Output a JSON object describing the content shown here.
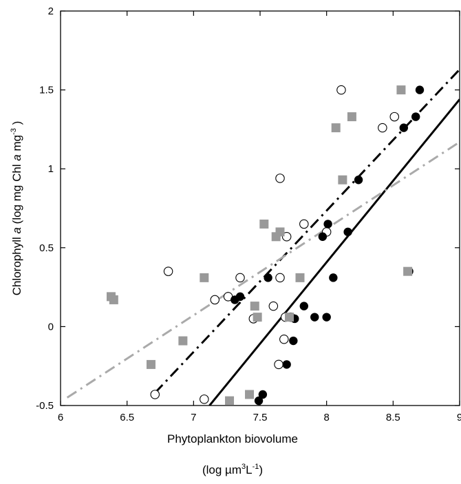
{
  "chart_data": {
    "type": "scatter",
    "xlabel_line1": "Phytoplankton biovolume",
    "xlabel_line2_parts": [
      "(log µm",
      "3",
      "L",
      "-1",
      ")"
    ],
    "ylabel_parts": [
      "Chlorophyll ",
      "a",
      "  (log mg Chl ",
      "a",
      " mg",
      "-3",
      " )"
    ],
    "xlim": [
      6,
      9
    ],
    "ylim": [
      -0.5,
      2
    ],
    "xticks": [
      6,
      6.5,
      7,
      7.5,
      8,
      8.5,
      9
    ],
    "xtick_labels": [
      "6",
      "6.5",
      "7",
      "7.5",
      "8",
      "8.5",
      "9"
    ],
    "yticks": [
      -0.5,
      0,
      0.5,
      1,
      1.5,
      2
    ],
    "ytick_labels": [
      "-0.5",
      "0",
      "0.5",
      "1",
      "1.5",
      "2"
    ],
    "series": [
      {
        "marker": "open-circle",
        "color": "#000000",
        "points": [
          [
            6.71,
            -0.43
          ],
          [
            6.81,
            0.35
          ],
          [
            7.08,
            -0.46
          ],
          [
            7.16,
            0.17
          ],
          [
            7.26,
            0.19
          ],
          [
            7.35,
            0.31
          ],
          [
            7.45,
            0.05
          ],
          [
            7.6,
            0.13
          ],
          [
            7.64,
            -0.24
          ],
          [
            7.65,
            0.31
          ],
          [
            7.65,
            0.94
          ],
          [
            7.68,
            -0.08
          ],
          [
            7.69,
            0.06
          ],
          [
            7.7,
            0.57
          ],
          [
            7.73,
            0.06
          ],
          [
            7.83,
            0.65
          ],
          [
            8.0,
            0.6
          ],
          [
            8.11,
            1.5
          ],
          [
            8.42,
            1.26
          ],
          [
            8.51,
            1.33
          ]
        ]
      },
      {
        "marker": "filled-circle",
        "color": "#000000",
        "points": [
          [
            7.31,
            0.17
          ],
          [
            7.35,
            0.19
          ],
          [
            7.49,
            -0.47
          ],
          [
            7.52,
            -0.43
          ],
          [
            7.56,
            0.31
          ],
          [
            7.7,
            -0.24
          ],
          [
            7.75,
            -0.09
          ],
          [
            7.76,
            0.05
          ],
          [
            7.83,
            0.13
          ],
          [
            7.91,
            0.06
          ],
          [
            7.97,
            0.57
          ],
          [
            8.0,
            0.06
          ],
          [
            8.01,
            0.65
          ],
          [
            8.05,
            0.31
          ],
          [
            8.16,
            0.6
          ],
          [
            8.24,
            0.93
          ],
          [
            8.58,
            1.26
          ],
          [
            8.62,
            0.35
          ],
          [
            8.67,
            1.33
          ],
          [
            8.7,
            1.5
          ]
        ]
      },
      {
        "marker": "square",
        "color": "#999999",
        "points": [
          [
            6.38,
            0.19
          ],
          [
            6.4,
            0.17
          ],
          [
            6.68,
            -0.24
          ],
          [
            6.92,
            -0.09
          ],
          [
            7.08,
            0.31
          ],
          [
            7.27,
            -0.47
          ],
          [
            7.42,
            -0.43
          ],
          [
            7.46,
            0.13
          ],
          [
            7.48,
            0.06
          ],
          [
            7.53,
            0.65
          ],
          [
            7.62,
            0.57
          ],
          [
            7.65,
            0.6
          ],
          [
            7.72,
            0.06
          ],
          [
            7.8,
            0.31
          ],
          [
            8.07,
            1.26
          ],
          [
            8.12,
            0.93
          ],
          [
            8.19,
            1.33
          ],
          [
            8.56,
            1.5
          ],
          [
            8.61,
            0.35
          ]
        ]
      }
    ],
    "lines": [
      {
        "style": "solid",
        "color": "#000000",
        "x": [
          7.12,
          9.0
        ],
        "y": [
          -0.5,
          1.44
        ]
      },
      {
        "style": "dash-dot",
        "color": "#000000",
        "x": [
          6.71,
          9.0
        ],
        "y": [
          -0.42,
          1.63
        ]
      },
      {
        "style": "dash-dot",
        "color": "#aaaaaa",
        "x": [
          6.05,
          9.0
        ],
        "y": [
          -0.45,
          1.17
        ]
      }
    ]
  }
}
